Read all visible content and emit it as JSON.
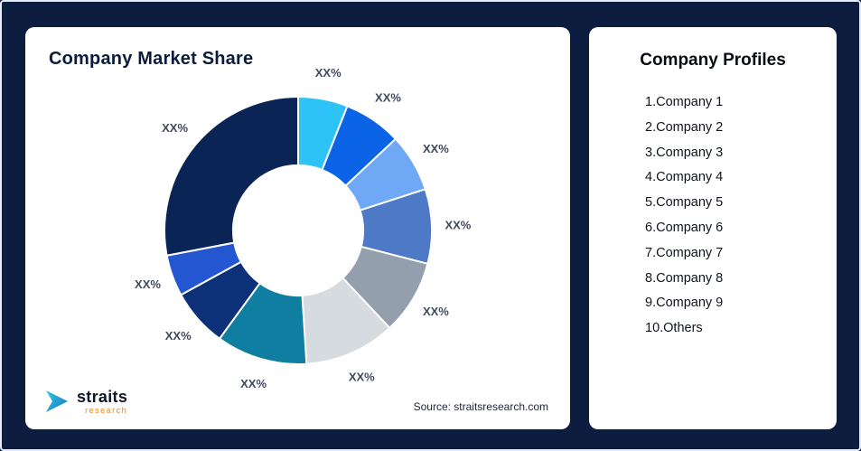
{
  "page": {
    "background_color": "#0D1D40"
  },
  "left_card": {
    "title": "Company Market Share",
    "source": "Source: straitsresearch.com"
  },
  "logo": {
    "text": "straits",
    "subtext": "research",
    "icon_color": "#2ab5d6"
  },
  "chart_data": {
    "type": "pie",
    "subtype": "donut",
    "title": "Company Market Share",
    "hole_ratio": 0.487,
    "start_angle_deg": 0,
    "rotation": "clockwise-from-top",
    "value_labels_placeholder": "XX%",
    "legend_position": "none",
    "segments": [
      {
        "label": "XX%",
        "value": 6,
        "color": "#2EC3F7"
      },
      {
        "label": "XX%",
        "value": 7,
        "color": "#0B63E5"
      },
      {
        "label": "XX%",
        "value": 7,
        "color": "#6FA8F5"
      },
      {
        "label": "XX%",
        "value": 9,
        "color": "#4E79C7"
      },
      {
        "label": "XX%",
        "value": 9,
        "color": "#939FAD"
      },
      {
        "label": "XX%",
        "value": 11,
        "color": "#D6DBE0"
      },
      {
        "label": "XX%",
        "value": 11,
        "color": "#0F7EA0"
      },
      {
        "label": "XX%",
        "value": 7,
        "color": "#0D3178"
      },
      {
        "label": "XX%",
        "value": 5,
        "color": "#2356D0"
      },
      {
        "label": "XX%",
        "value": 28,
        "color": "#0A2456"
      }
    ]
  },
  "profiles": {
    "title": "Company Profiles",
    "items": [
      "1.Company 1",
      "2.Company 2",
      "3.Company 3",
      "4.Company 4",
      "5.Company 5",
      "6.Company 6",
      "7.Company 7",
      "8.Company 8",
      "9.Company 9",
      "10.Others"
    ]
  }
}
